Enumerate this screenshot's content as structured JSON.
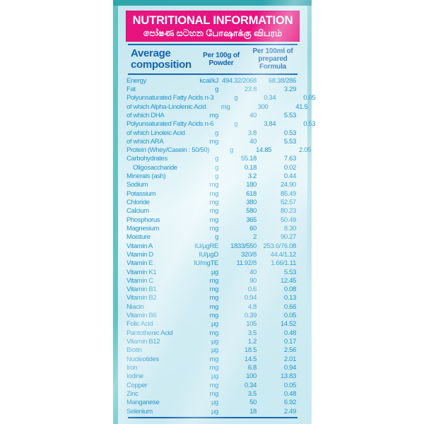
{
  "banner": {
    "title": "NUTRITIONAL INFORMATION",
    "subtitle": "පෝෂණ සටහන  போஷாக்கு விபரம்"
  },
  "table": {
    "col1_header": "Average composition",
    "col2_header": "Per 100g of Powder",
    "col3_header": "Per 100ml of prepared Formula",
    "rows": [
      {
        "name": "Energy",
        "unit": "kcal/kJ",
        "per100g": "494.32/2068",
        "per100ml": "68.38/286"
      },
      {
        "name": "Fat",
        "unit": "g",
        "per100g": "23.8",
        "per100ml": "3.29"
      },
      {
        "name": "Polyunsaturated Fatty Acids n-3",
        "unit": "g",
        "per100g": "0.34",
        "per100ml": "0.05"
      },
      {
        "name": "of which Alpha-Linolenic Acid",
        "unit": "mg",
        "per100g": "300",
        "per100ml": "41.5"
      },
      {
        "name": "of which DHA",
        "unit": "mg",
        "per100g": "40",
        "per100ml": "5.53"
      },
      {
        "name": "Polyunsaturated Fatty Acids n-6",
        "unit": "g",
        "per100g": "3.84",
        "per100ml": "0.53"
      },
      {
        "name": "of which Linoleic Acid",
        "unit": "g",
        "per100g": "3.8",
        "per100ml": "0.53"
      },
      {
        "name": "of which ARA",
        "unit": "mg",
        "per100g": "40",
        "per100ml": "5.53"
      },
      {
        "name": "Protein (Whey/Casein : 50/50)",
        "unit": "g",
        "per100g": "14.85",
        "per100ml": "2.05"
      },
      {
        "name": "Carbohydrates",
        "unit": "g",
        "per100g": "55.18",
        "per100ml": "7.63"
      },
      {
        "name": "Oligosaccharide",
        "unit": "g",
        "per100g": "0.18",
        "per100ml": "0.02",
        "indent": true
      },
      {
        "name": "Minerals (ash)",
        "unit": "g",
        "per100g": "3.2",
        "per100ml": "0.44"
      },
      {
        "name": "Sodium",
        "unit": "mg",
        "per100g": "180",
        "per100ml": "24.90"
      },
      {
        "name": "Potassium",
        "unit": "mg",
        "per100g": "618",
        "per100ml": "85.49"
      },
      {
        "name": "Chloride",
        "unit": "mg",
        "per100g": "380",
        "per100ml": "52.57"
      },
      {
        "name": "Calcium",
        "unit": "mg",
        "per100g": "580",
        "per100ml": "80.23"
      },
      {
        "name": "Phosphorus",
        "unit": "mg",
        "per100g": "365",
        "per100ml": "50.49"
      },
      {
        "name": "Magnesium",
        "unit": "mg",
        "per100g": "60",
        "per100ml": "8.30"
      },
      {
        "name": "Moisture",
        "unit": "g",
        "per100g": "2",
        "per100ml": "90.27"
      },
      {
        "name": "Vitamin A",
        "unit": "IU/µgRE",
        "per100g": "1833/550",
        "per100ml": "253.6/76.08"
      },
      {
        "name": "Vitamin D",
        "unit": "IU/µgD",
        "per100g": "320/8",
        "per100ml": "44.4/1.12"
      },
      {
        "name": "Vitamin E",
        "unit": "IU/mgTE",
        "per100g": "11.92/8",
        "per100ml": "1.66/1.11"
      },
      {
        "name": "Vitamin K1",
        "unit": "µg",
        "per100g": "40",
        "per100ml": "5.53"
      },
      {
        "name": "Vitamin C",
        "unit": "mg",
        "per100g": "90",
        "per100ml": "12.45"
      },
      {
        "name": "Vitamin B1",
        "unit": "mg",
        "per100g": "0.6",
        "per100ml": "0.08"
      },
      {
        "name": "Vitamin B2",
        "unit": "mg",
        "per100g": "0.94",
        "per100ml": "0.13"
      },
      {
        "name": "Niacin",
        "unit": "mg",
        "per100g": "4.8",
        "per100ml": "0.66"
      },
      {
        "name": "Vitamin B6",
        "unit": "mg",
        "per100g": "0.39",
        "per100ml": "0.05"
      },
      {
        "name": "Folic Acid",
        "unit": "µg",
        "per100g": "105",
        "per100ml": "14.52"
      },
      {
        "name": "Pantothenic Acid",
        "unit": "mg",
        "per100g": "3.5",
        "per100ml": "0.48"
      },
      {
        "name": "Vitamin B12",
        "unit": "µg",
        "per100g": "1.2",
        "per100ml": "0.17"
      },
      {
        "name": "Biotin",
        "unit": "µg",
        "per100g": "18.5",
        "per100ml": "2.56"
      },
      {
        "name": "Nucleotides",
        "unit": "mg",
        "per100g": "14.5",
        "per100ml": "2.01"
      },
      {
        "name": "Iron",
        "unit": "mg",
        "per100g": "6.8",
        "per100ml": "0.94"
      },
      {
        "name": "Iodine",
        "unit": "µg",
        "per100g": "100",
        "per100ml": "13.83"
      },
      {
        "name": "Copper",
        "unit": "mg",
        "per100g": "0.34",
        "per100ml": "0.05"
      },
      {
        "name": "Zinc",
        "unit": "mg",
        "per100g": "3.5",
        "per100ml": "0.48"
      },
      {
        "name": "Manganese",
        "unit": "µg",
        "per100g": "50",
        "per100ml": "6.92"
      },
      {
        "name": "Selenium",
        "unit": "µg",
        "per100g": "18",
        "per100ml": "2.49"
      }
    ]
  },
  "colors": {
    "banner_pink": "#E8137F",
    "teal_top_bar": "#2FA5AE",
    "teal_left_strip": "#62C2C4",
    "panel_light_blue": "#D3EDF4",
    "rule_dark_blue": "#1767AE",
    "header_text_blue": "#1463AC",
    "row_text_blue": "#2496CD"
  }
}
